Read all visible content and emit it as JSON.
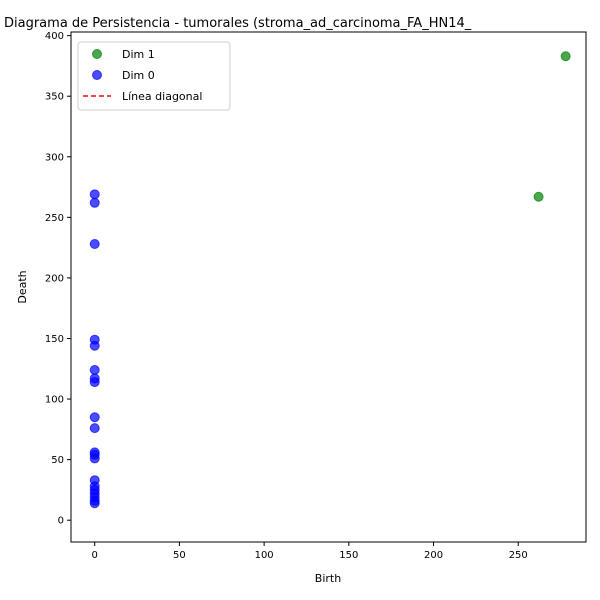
{
  "chart_data": {
    "type": "scatter",
    "title": "Diagrama de Persistencia - tumorales (stroma_ad_carcinoma_FA_HN14_",
    "xlabel": "Birth",
    "ylabel": "Death",
    "xlim": [
      -14,
      290
    ],
    "ylim": [
      -18,
      403
    ],
    "xticks": [
      0,
      50,
      100,
      150,
      200,
      250
    ],
    "yticks": [
      0,
      50,
      100,
      150,
      200,
      250,
      300,
      350,
      400
    ],
    "grid": false,
    "legend": "upper-left",
    "series": [
      {
        "name": "Dim 1",
        "color": "#008000",
        "points": [
          {
            "x": 262,
            "y": 267
          },
          {
            "x": 278,
            "y": 383
          }
        ]
      },
      {
        "name": "Dim 0",
        "color": "#0000ff",
        "points": [
          {
            "x": 0,
            "y": 269
          },
          {
            "x": 0,
            "y": 262
          },
          {
            "x": 0,
            "y": 228
          },
          {
            "x": 0,
            "y": 149
          },
          {
            "x": 0,
            "y": 144
          },
          {
            "x": 0,
            "y": 124
          },
          {
            "x": 0,
            "y": 117
          },
          {
            "x": 0,
            "y": 114
          },
          {
            "x": 0,
            "y": 85
          },
          {
            "x": 0,
            "y": 76
          },
          {
            "x": 0,
            "y": 56
          },
          {
            "x": 0,
            "y": 54
          },
          {
            "x": 0,
            "y": 51
          },
          {
            "x": 0,
            "y": 33
          },
          {
            "x": 0,
            "y": 28
          },
          {
            "x": 0,
            "y": 25
          },
          {
            "x": 0,
            "y": 22
          },
          {
            "x": 0,
            "y": 19
          },
          {
            "x": 0,
            "y": 16
          },
          {
            "x": 0,
            "y": 14
          }
        ]
      }
    ],
    "diagonal": {
      "name": "Línea diagonal",
      "color": "#ff0000",
      "style": "dashed"
    }
  }
}
